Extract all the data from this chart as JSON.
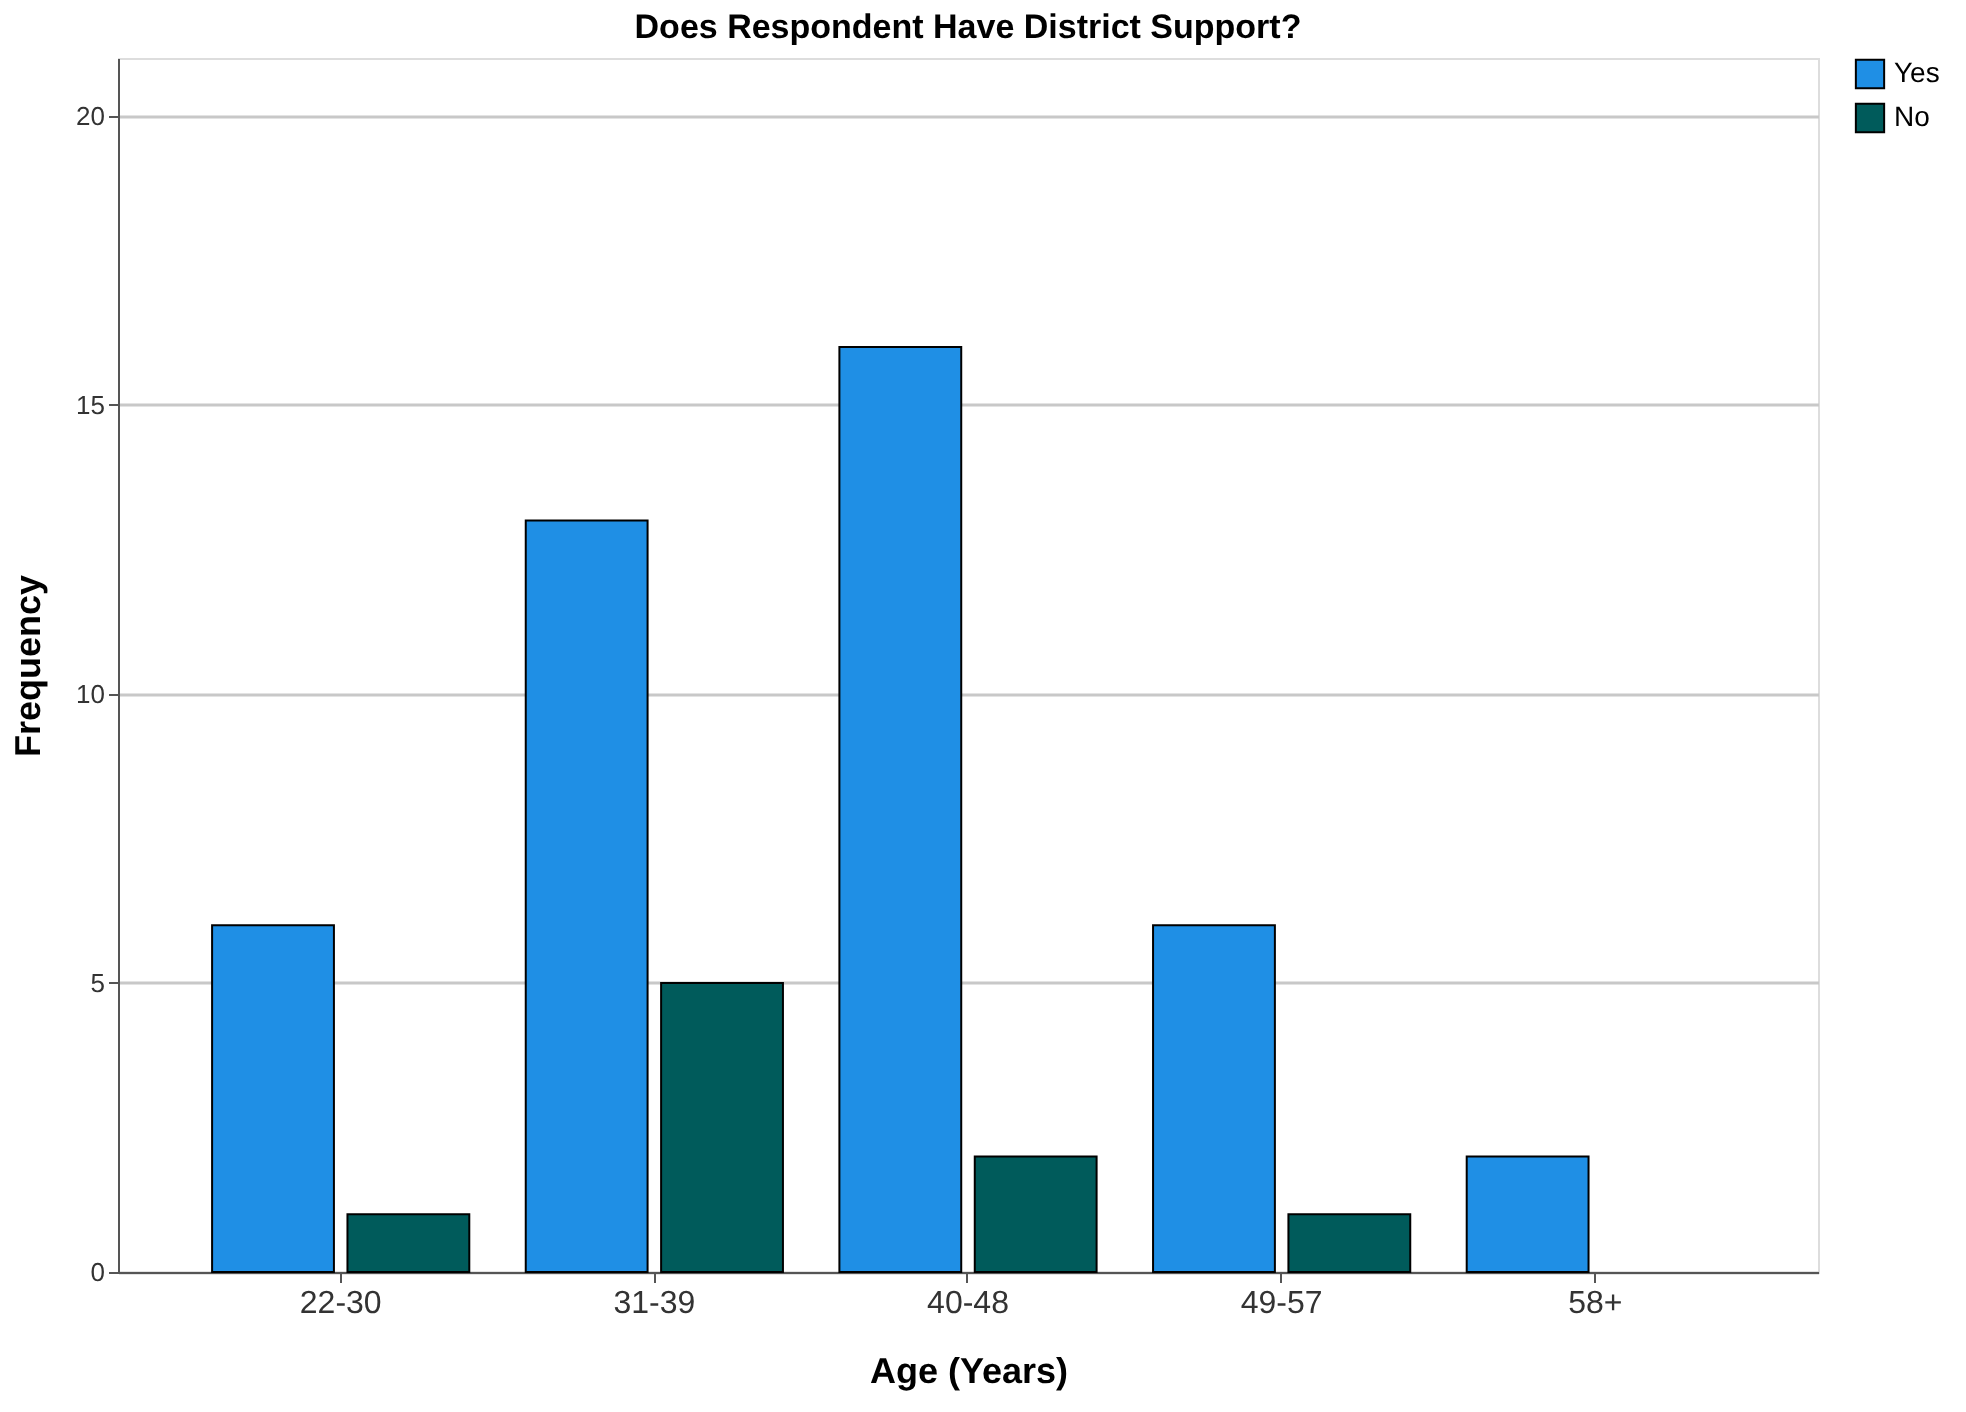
{
  "chart_data": {
    "type": "bar",
    "title": "Does Respondent Have District Support?",
    "xlabel": "Age (Years)",
    "ylabel": "Frequency",
    "categories": [
      "22-30",
      "31-39",
      "40-48",
      "49-57",
      "58+"
    ],
    "series": [
      {
        "name": "Yes",
        "color": "#1f8fe5",
        "values": [
          6,
          13,
          16,
          6,
          2
        ]
      },
      {
        "name": "No",
        "color": "#005b5b",
        "values": [
          1,
          5,
          2,
          1,
          null
        ]
      }
    ],
    "ylim": [
      0,
      21
    ],
    "yticks": [
      0,
      5,
      10,
      15,
      20
    ],
    "grid": "y",
    "legend": "top right"
  }
}
